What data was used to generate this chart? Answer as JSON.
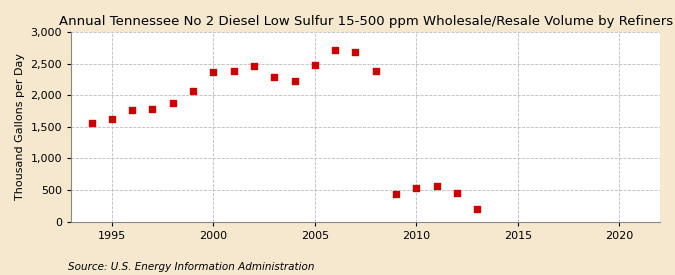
{
  "title": "Annual Tennessee No 2 Diesel Low Sulfur 15-500 ppm Wholesale/Resale Volume by Refiners",
  "ylabel": "Thousand Gallons per Day",
  "source": "Source: U.S. Energy Information Administration",
  "background_color": "#f5e8cf",
  "plot_background_color": "#ffffff",
  "marker_color": "#cc0000",
  "years": [
    1994,
    1995,
    1996,
    1997,
    1998,
    1999,
    2000,
    2001,
    2002,
    2003,
    2004,
    2005,
    2006,
    2007,
    2008,
    2009,
    2010,
    2011,
    2012,
    2013
  ],
  "values": [
    1565,
    1620,
    1760,
    1785,
    1870,
    2065,
    2360,
    2390,
    2460,
    2280,
    2230,
    2480,
    2720,
    2680,
    2380,
    440,
    530,
    560,
    450,
    200
  ],
  "ylim": [
    0,
    3000
  ],
  "yticks": [
    0,
    500,
    1000,
    1500,
    2000,
    2500,
    3000
  ],
  "xlim": [
    1993,
    2022
  ],
  "xticks": [
    1995,
    2000,
    2005,
    2010,
    2015,
    2020
  ],
  "grid_color": "#bbbbbb",
  "title_fontsize": 9.5,
  "label_fontsize": 8,
  "tick_fontsize": 8,
  "source_fontsize": 7.5
}
